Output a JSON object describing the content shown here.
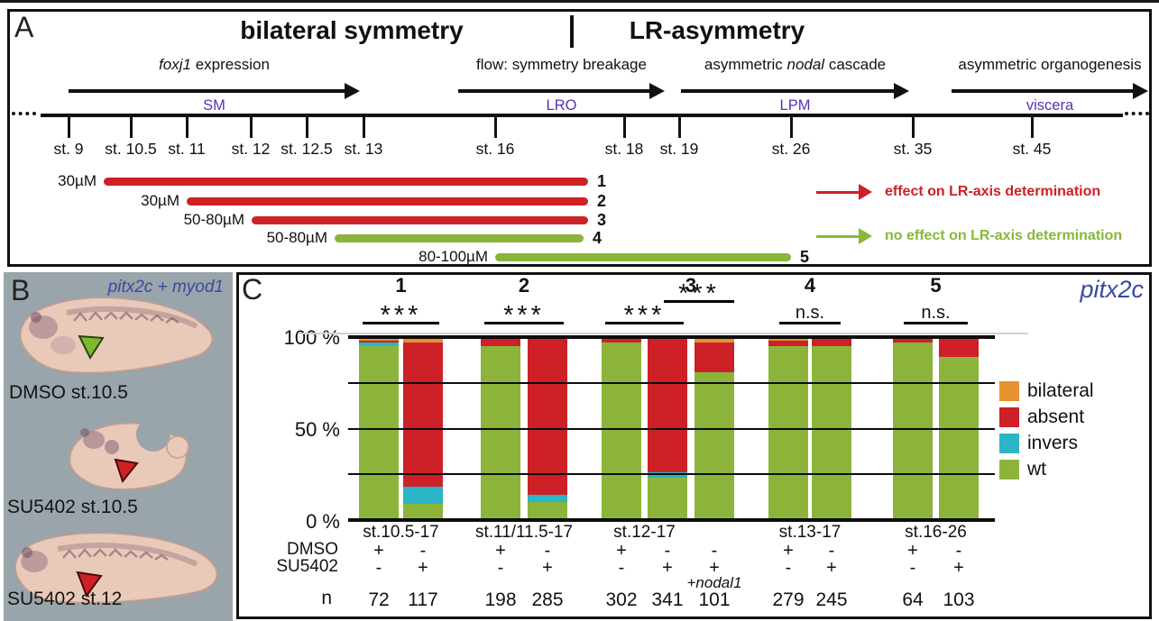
{
  "colors": {
    "purple_tissue": "#5A2FB8",
    "gene_blue": "#3B4AA0",
    "effect_red": "#CE2027",
    "no_effect_green": "#86B93A",
    "panel_b_background": "#9aa4ab"
  },
  "panel_a": {
    "label": "A",
    "title_left": "bilateral symmetry",
    "title_right": "LR-asymmetry",
    "processes": [
      {
        "pre": "",
        "italic": "foxj1",
        "post": " expression",
        "tissue": "SM"
      },
      {
        "pre": "flow: symmetry breakage",
        "italic": "",
        "post": "",
        "tissue": "LRO"
      },
      {
        "pre": "asymmetric ",
        "italic": "nodal",
        "post": " cascade",
        "tissue": "LPM"
      },
      {
        "pre": "asymmetric organogenesis",
        "italic": "",
        "post": "",
        "tissue": "viscera"
      }
    ],
    "stages": [
      "st. 9",
      "st. 10.5",
      "st. 11",
      "st. 12",
      "st. 12.5",
      "st. 13",
      "st. 16",
      "st. 18",
      "st. 19",
      "st. 26",
      "st. 35",
      "st. 45"
    ],
    "treatments": [
      {
        "dose": "30µM",
        "num": "1",
        "effect": true
      },
      {
        "dose": "30µM",
        "num": "2",
        "effect": true
      },
      {
        "dose": "50-80µM",
        "num": "3",
        "effect": true
      },
      {
        "dose": "50-80µM",
        "num": "4",
        "effect": false
      },
      {
        "dose": "80-100µM",
        "num": "5",
        "effect": false
      }
    ],
    "legend": [
      {
        "text": "effect on LR-axis determination",
        "color": "#CE2027"
      },
      {
        "text": "no effect on LR-axis determination",
        "color": "#86B93A"
      }
    ]
  },
  "panel_b": {
    "label": "B",
    "gene_label": "pitx2c + myod1",
    "images": [
      {
        "caption": "DMSO st.10.5",
        "arrow_color": "#7CBA2E"
      },
      {
        "caption": "SU5402 st.10.5",
        "arrow_color": "#D01F26"
      },
      {
        "caption": "SU5402 st.12",
        "arrow_color": "#D01F26"
      }
    ]
  },
  "panel_c": {
    "label": "C",
    "title": "pitx2c",
    "yticks": [
      "100 %",
      "50 %",
      "0 %"
    ],
    "row_labels": {
      "dmso": "DMSO",
      "su5402": "SU5402",
      "n": "n"
    }
  },
  "chart_data": {
    "type": "stacked-bar-100",
    "title": "pitx2c",
    "ylabel_ticks": [
      "100 %",
      "50 %",
      "0 %"
    ],
    "ylim": [
      0,
      100
    ],
    "gridlines_pct": [
      25,
      50,
      75
    ],
    "legend_position": "right",
    "legend": [
      {
        "label": "bilateral",
        "color": "#E8912F"
      },
      {
        "label": "absent",
        "color": "#CD2027"
      },
      {
        "label": "invers",
        "color": "#2BB5C6"
      },
      {
        "label": "wt",
        "color": "#8CB43B"
      }
    ],
    "segment_order": [
      "bilateral",
      "absent",
      "invers",
      "wt"
    ],
    "groups": [
      {
        "number": "1",
        "significance": "***",
        "stage": "st.10.5-17",
        "bars": [
          {
            "dmso": "+",
            "su5402": "-",
            "n": "72",
            "values": [
              2,
              1,
              2,
              95
            ]
          },
          {
            "dmso": "-",
            "su5402": "+",
            "n": "117",
            "values": [
              3,
              79,
              9,
              9
            ]
          }
        ]
      },
      {
        "number": "2",
        "significance": "***",
        "stage": "st.11/11.5-17",
        "bars": [
          {
            "dmso": "+",
            "su5402": "-",
            "n": "198",
            "values": [
              0,
              5,
              0,
              95
            ]
          },
          {
            "dmso": "-",
            "su5402": "+",
            "n": "285",
            "values": [
              0,
              86,
              4,
              10
            ]
          }
        ]
      },
      {
        "number": "3",
        "significance": "***",
        "significance2": "***",
        "stage": "st.12-17",
        "bars": [
          {
            "dmso": "+",
            "su5402": "-",
            "n": "302",
            "values": [
              0,
              3,
              0,
              97
            ]
          },
          {
            "dmso": "-",
            "su5402": "+",
            "n": "341",
            "values": [
              0,
              74,
              3,
              23
            ]
          },
          {
            "dmso": "-",
            "su5402": "+",
            "sub": "+nodal1",
            "n": "101",
            "values": [
              3,
              16,
              0,
              81
            ]
          }
        ]
      },
      {
        "number": "4",
        "significance": "n.s.",
        "stage": "st.13-17",
        "bars": [
          {
            "dmso": "+",
            "su5402": "-",
            "n": "279",
            "values": [
              2,
              3,
              0,
              95
            ]
          },
          {
            "dmso": "-",
            "su5402": "+",
            "n": "245",
            "values": [
              0,
              5,
              0,
              95
            ]
          }
        ]
      },
      {
        "number": "5",
        "significance": "n.s.",
        "stage": "st.16-26",
        "bars": [
          {
            "dmso": "+",
            "su5402": "-",
            "n": "64",
            "values": [
              0,
              3,
              0,
              97
            ]
          },
          {
            "dmso": "-",
            "su5402": "+",
            "n": "103",
            "values": [
              0,
              11,
              0,
              89
            ]
          }
        ]
      }
    ]
  }
}
